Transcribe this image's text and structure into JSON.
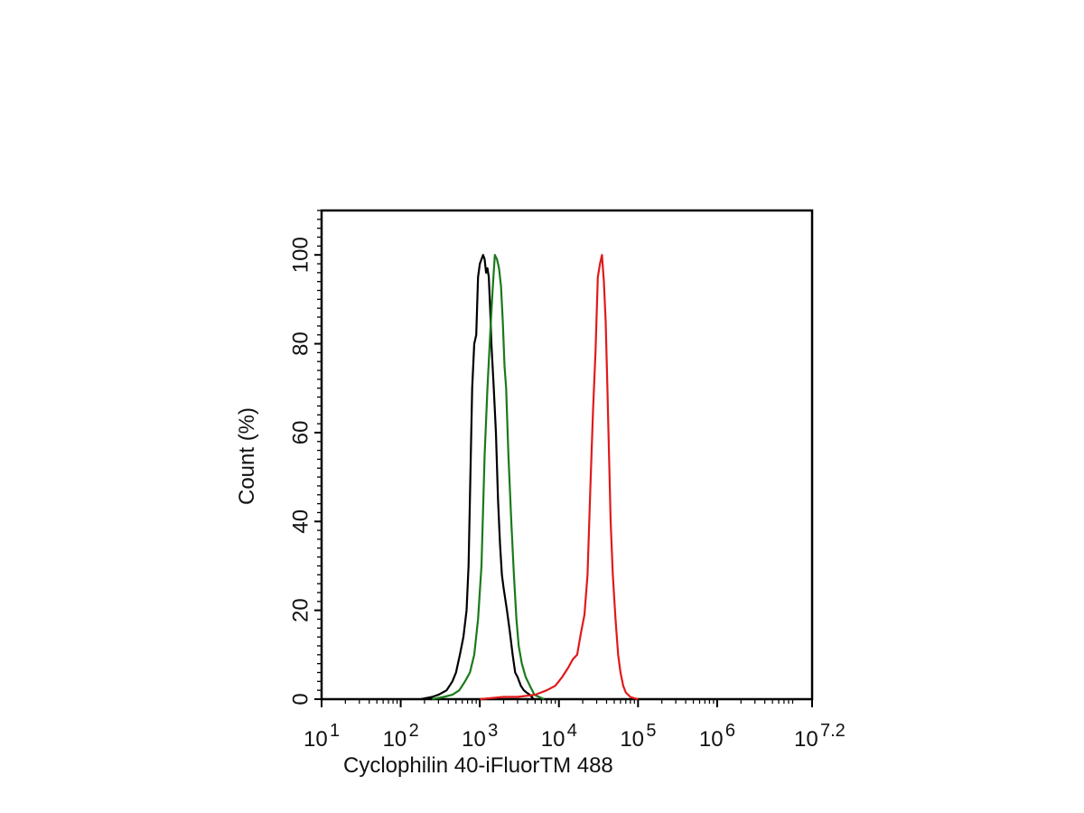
{
  "chart_data": {
    "type": "line",
    "title": "",
    "xlabel": "Cyclophilin 40-iFluorTM 488",
    "ylabel": "Count  (%)",
    "xscale": "log10",
    "xlim": [
      10,
      15848932
    ],
    "ylim": [
      0,
      110
    ],
    "x_ticks": [
      {
        "base": "10",
        "exp": "1",
        "value": 10
      },
      {
        "base": "10",
        "exp": "2",
        "value": 100
      },
      {
        "base": "10",
        "exp": "3",
        "value": 1000
      },
      {
        "base": "10",
        "exp": "4",
        "value": 10000
      },
      {
        "base": "10",
        "exp": "5",
        "value": 100000
      },
      {
        "base": "10",
        "exp": "6",
        "value": 1000000
      },
      {
        "base": "10",
        "exp": "7.2",
        "value": 15848932
      }
    ],
    "y_ticks": [
      "0",
      "20",
      "40",
      "60",
      "80",
      "100"
    ],
    "grid": false,
    "legend": "none",
    "series": [
      {
        "color": "#000000",
        "x": [
          180,
          250,
          300,
          380,
          450,
          500,
          560,
          620,
          680,
          720,
          760,
          800,
          850,
          900,
          950,
          1000,
          1050,
          1100,
          1150,
          1200,
          1250,
          1300,
          1350,
          1400,
          1450,
          1500,
          1600,
          1700,
          1800,
          1900,
          2000,
          2200,
          2400,
          2600,
          2800,
          3000,
          3300,
          3600,
          3900,
          4300,
          4800
        ],
        "y": [
          0,
          0.5,
          1,
          2,
          4,
          6,
          10,
          14,
          20,
          30,
          50,
          70,
          80,
          82,
          95,
          98,
          99,
          100,
          99,
          96,
          97,
          95,
          88,
          80,
          75,
          70,
          60,
          45,
          35,
          28,
          25,
          20,
          15,
          10,
          6,
          5,
          3,
          2,
          1.5,
          1,
          0
        ]
      },
      {
        "color": "#1a7a1a",
        "x": [
          250,
          350,
          450,
          550,
          650,
          750,
          850,
          950,
          1050,
          1150,
          1250,
          1350,
          1450,
          1550,
          1650,
          1750,
          1850,
          1950,
          2050,
          2150,
          2300,
          2500,
          2700,
          2900,
          3100,
          3400,
          3800,
          4300,
          4900,
          5600,
          6500
        ],
        "y": [
          0,
          0.5,
          1,
          2,
          4,
          6,
          10,
          18,
          30,
          55,
          70,
          82,
          92,
          100,
          99,
          97,
          93,
          85,
          75,
          70,
          55,
          40,
          28,
          18,
          12,
          8,
          5,
          3,
          1,
          0.5,
          0
        ]
      },
      {
        "color": "#e01a1a",
        "x": [
          1000,
          2000,
          3000,
          5000,
          7000,
          9000,
          11000,
          13000,
          15000,
          17000,
          19000,
          21000,
          23000,
          25000,
          27000,
          29000,
          31000,
          33000,
          35000,
          37000,
          39000,
          41000,
          43000,
          45000,
          48000,
          52000,
          56000,
          60000,
          65000,
          70000,
          80000,
          90000,
          100000
        ],
        "y": [
          0,
          0.5,
          0.5,
          1,
          2,
          3,
          5,
          7,
          9,
          10,
          15,
          19,
          28,
          48,
          65,
          78,
          95,
          98,
          100,
          94,
          85,
          70,
          55,
          40,
          28,
          18,
          10,
          6,
          3,
          1.5,
          0.5,
          0.2,
          0
        ]
      }
    ]
  }
}
